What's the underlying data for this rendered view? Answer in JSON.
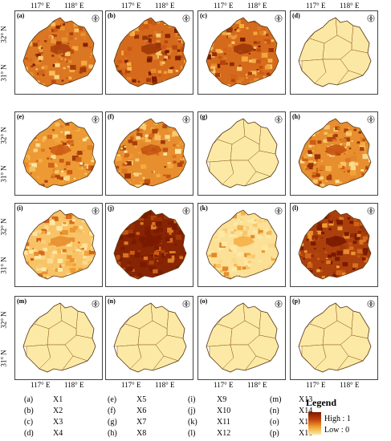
{
  "axes": {
    "lon_labels": [
      "117° E",
      "118° E"
    ],
    "lat_labels": [
      "32° N",
      "31° N"
    ]
  },
  "panels": [
    {
      "letter": "(a)",
      "variable": "X1",
      "style": "raster",
      "level": 0.55
    },
    {
      "letter": "(b)",
      "variable": "X2",
      "style": "raster",
      "level": 0.6
    },
    {
      "letter": "(c)",
      "variable": "X3",
      "style": "raster",
      "level": 0.6
    },
    {
      "letter": "(d)",
      "variable": "X4",
      "style": "districts",
      "level": 0.55
    },
    {
      "letter": "(e)",
      "variable": "X5",
      "style": "raster",
      "level": 0.4
    },
    {
      "letter": "(f)",
      "variable": "X6",
      "style": "raster",
      "level": 0.45
    },
    {
      "letter": "(g)",
      "variable": "X7",
      "style": "districts",
      "level": 0.5
    },
    {
      "letter": "(h)",
      "variable": "X8",
      "style": "raster",
      "level": 0.45
    },
    {
      "letter": "(i)",
      "variable": "X9",
      "style": "raster",
      "level": 0.2
    },
    {
      "letter": "(j)",
      "variable": "X10",
      "style": "raster",
      "level": 0.95
    },
    {
      "letter": "(k)",
      "variable": "X11",
      "style": "raster",
      "level": 0.05
    },
    {
      "letter": "(l)",
      "variable": "X12",
      "style": "raster",
      "level": 0.8
    },
    {
      "letter": "(m)",
      "variable": "X13",
      "style": "districts",
      "level": 0.4
    },
    {
      "letter": "(n)",
      "variable": "X14",
      "style": "districts",
      "level": 0.45
    },
    {
      "letter": "(o)",
      "variable": "X15",
      "style": "districts",
      "level": 0.5
    },
    {
      "letter": "(p)",
      "variable": "X16",
      "style": "districts",
      "level": 0.45
    }
  ],
  "legend": {
    "title": "Legend",
    "high": "High : 1",
    "low": "Low : 0",
    "colors": {
      "high": "#7a1a00",
      "mid": "#e07a1f",
      "low": "#fce9a6"
    }
  }
}
